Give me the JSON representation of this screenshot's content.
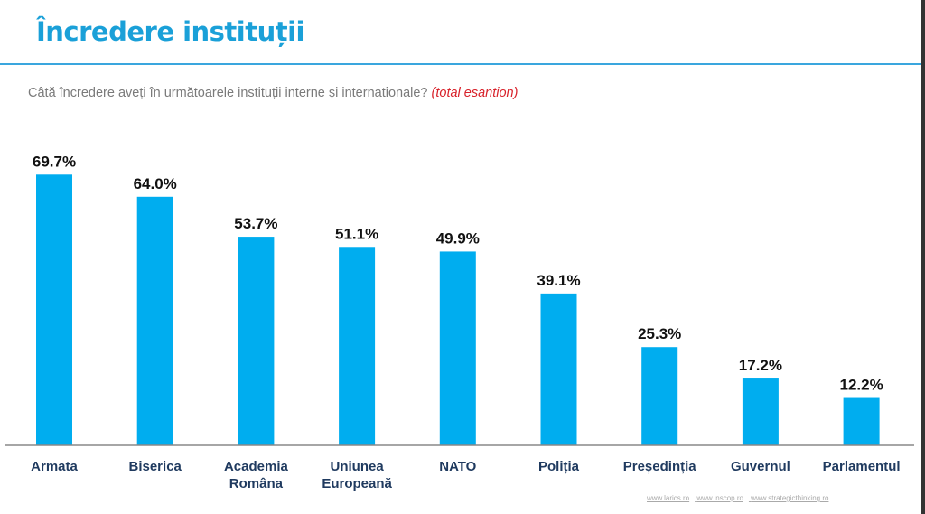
{
  "title": "Încredere instituții",
  "subtitle": "Câtă încredere aveți în următoarele instituții interne și internationale?",
  "subtitle_note": "(total esantion)",
  "footer_links": [
    "www.larics.ro",
    "www.inscop.ro",
    "www.strategicthinking.ro"
  ],
  "colors": {
    "bar": "#00adef",
    "title": "#1aa0d8",
    "note": "#d8212a"
  },
  "chart_data": {
    "type": "bar",
    "title": "",
    "xlabel": "",
    "ylabel": "",
    "ylim": [
      0,
      70
    ],
    "grid": false,
    "categories": [
      [
        "Armata"
      ],
      [
        "Biserica"
      ],
      [
        "Academia",
        "Româna"
      ],
      [
        "Uniunea",
        "Europeană"
      ],
      [
        "NATO"
      ],
      [
        "Poliția"
      ],
      [
        "Președinția"
      ],
      [
        "Guvernul"
      ],
      [
        "Parlamentul"
      ]
    ],
    "values": [
      69.7,
      64.0,
      53.7,
      51.1,
      49.9,
      39.1,
      25.3,
      17.2,
      12.2
    ],
    "data_labels": [
      "69.7%",
      "64.0%",
      "53.7%",
      "51.1%",
      "49.9%",
      "39.1%",
      "25.3%",
      "17.2%",
      "12.2%"
    ]
  }
}
